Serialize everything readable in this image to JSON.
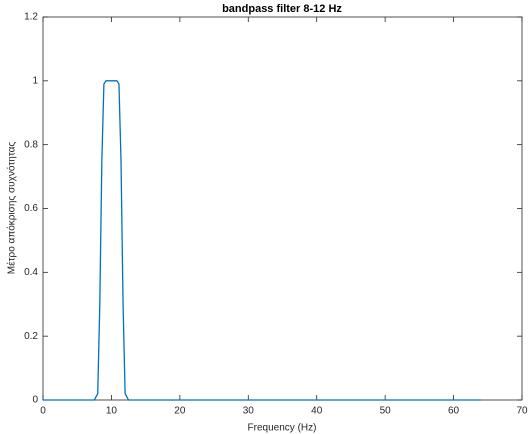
{
  "chart_data": {
    "type": "line",
    "title": "bandpass filter 8-12 Hz",
    "x_label": "Frequency (Hz)",
    "y_label": "Μέτρο απόκρισης συχνότητας",
    "x": [
      0,
      7.5,
      8,
      8.3,
      8.6,
      8.9,
      9.2,
      10.8,
      11.1,
      11.4,
      11.7,
      12,
      12.5,
      64
    ],
    "values": [
      0,
      0,
      0.02,
      0.3,
      0.75,
      0.99,
      1,
      1,
      0.99,
      0.75,
      0.3,
      0.02,
      0,
      0
    ],
    "color": "#0072bd",
    "xlim": [
      0,
      70
    ],
    "xticks": [
      0,
      10,
      20,
      30,
      40,
      50,
      60,
      70
    ],
    "ylim": [
      0,
      1.2
    ],
    "yticks": [
      0,
      0.2,
      0.4,
      0.6,
      0.8,
      1,
      1.2
    ],
    "grid": false
  }
}
